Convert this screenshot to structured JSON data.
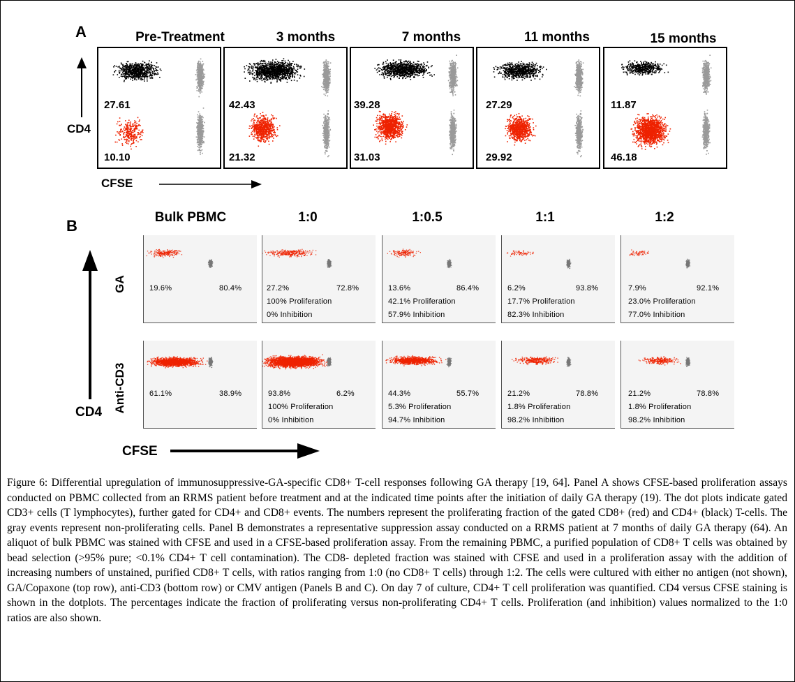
{
  "panel_a": {
    "letter": "A",
    "headers": [
      "Pre-Treatment",
      "3 months",
      "7 months",
      "11 months",
      "15 months"
    ],
    "plots": [
      {
        "cd4_pct": "27.61",
        "cd8_pct": "10.10"
      },
      {
        "cd4_pct": "42.43",
        "cd8_pct": "21.32"
      },
      {
        "cd4_pct": "39.28",
        "cd8_pct": "31.03"
      },
      {
        "cd4_pct": "27.29",
        "cd8_pct": "29.92"
      },
      {
        "cd4_pct": "11.87",
        "cd8_pct": "46.18"
      }
    ],
    "y_label": "CD4",
    "x_label": "CFSE"
  },
  "panel_b": {
    "letter": "B",
    "headers": [
      "Bulk PBMC",
      "1:0",
      "1:0.5",
      "1:1",
      "1:2"
    ],
    "row_labels": [
      "GA",
      "Anti-CD3"
    ],
    "y_label": "CD4",
    "x_label": "CFSE",
    "rows": [
      [
        {
          "left": "19.6%",
          "right": "80.4%",
          "prolif": "",
          "inhib": ""
        },
        {
          "left": "27.2%",
          "right": "72.8%",
          "prolif": "100% Proliferation",
          "inhib": "0% Inhibition"
        },
        {
          "left": "13.6%",
          "right": "86.4%",
          "prolif": "42.1% Proliferation",
          "inhib": "57.9% Inhibition"
        },
        {
          "left": "6.2%",
          "right": "93.8%",
          "prolif": "17.7% Proliferation",
          "inhib": "82.3% Inhibition"
        },
        {
          "left": "7.9%",
          "right": "92.1%",
          "prolif": "23.0% Proliferation",
          "inhib": "77.0% Inhibition"
        }
      ],
      [
        {
          "left": "61.1%",
          "right": "38.9%",
          "prolif": "",
          "inhib": ""
        },
        {
          "left": "93.8%",
          "right": "6.2%",
          "prolif": "100% Proliferation",
          "inhib": "0% Inhibition"
        },
        {
          "left": "44.3%",
          "right": "55.7%",
          "prolif": "5.3% Proliferation",
          "inhib": "94.7% Inhibition"
        },
        {
          "left": "21.2%",
          "right": "78.8%",
          "prolif": "1.8% Proliferation",
          "inhib": "98.2% Inhibition"
        },
        {
          "left": "21.2%",
          "right": "78.8%",
          "prolif": "1.8% Proliferation",
          "inhib": "98.2% Inhibition"
        }
      ]
    ]
  },
  "caption": "Figure 6: Differential upregulation of immunosuppressive-GA-specific CD8+ T-cell responses following GA therapy [19, 64]. Panel A shows CFSE-based proliferation assays conducted on PBMC collected from an RRMS patient before treatment and at the indicated time points after the initiation of daily GA therapy (19). The dot plots indicate gated CD3+ cells (T lymphocytes), further gated for CD4+ and CD8+ events. The numbers represent the proliferating fraction of the gated CD8+ (red) and CD4+ (black) T-cells. The gray events represent non-proliferating cells. Panel B demonstrates a representative suppression assay conducted on a RRMS patient at 7 months of daily GA therapy (64). An aliquot of bulk PBMC was stained with CFSE and used in a CFSE-based proliferation assay. From the remaining PBMC, a purified population of CD8+ T cells was obtained by bead selection (>95% pure; <0.1% CD4+ T cell contamination). The CD8- depleted fraction was stained with CFSE and used in a proliferation assay with the addition of increasing numbers of unstained, purified CD8+ T cells, with ratios ranging from 1:0 (no CD8+ T cells) through 1:2. The cells were cultured with either no antigen (not shown), GA/Copaxone (top row), anti-CD3 (bottom row) or CMV antigen (Panels B and C). On day 7 of culture, CD4+ T cell proliferation was quantified. CD4 versus CFSE staining is shown in the dotplots. The percentages indicate the fraction of proliferating versus non-proliferating CD4+ T cells. Proliferation (and inhibition) values normalized to the 1:0 ratios are also shown.",
  "colors": {
    "cd8_red": "#ee2200",
    "cd4_black": "#000000",
    "nonprolif_gray": "#9a9a9a"
  }
}
